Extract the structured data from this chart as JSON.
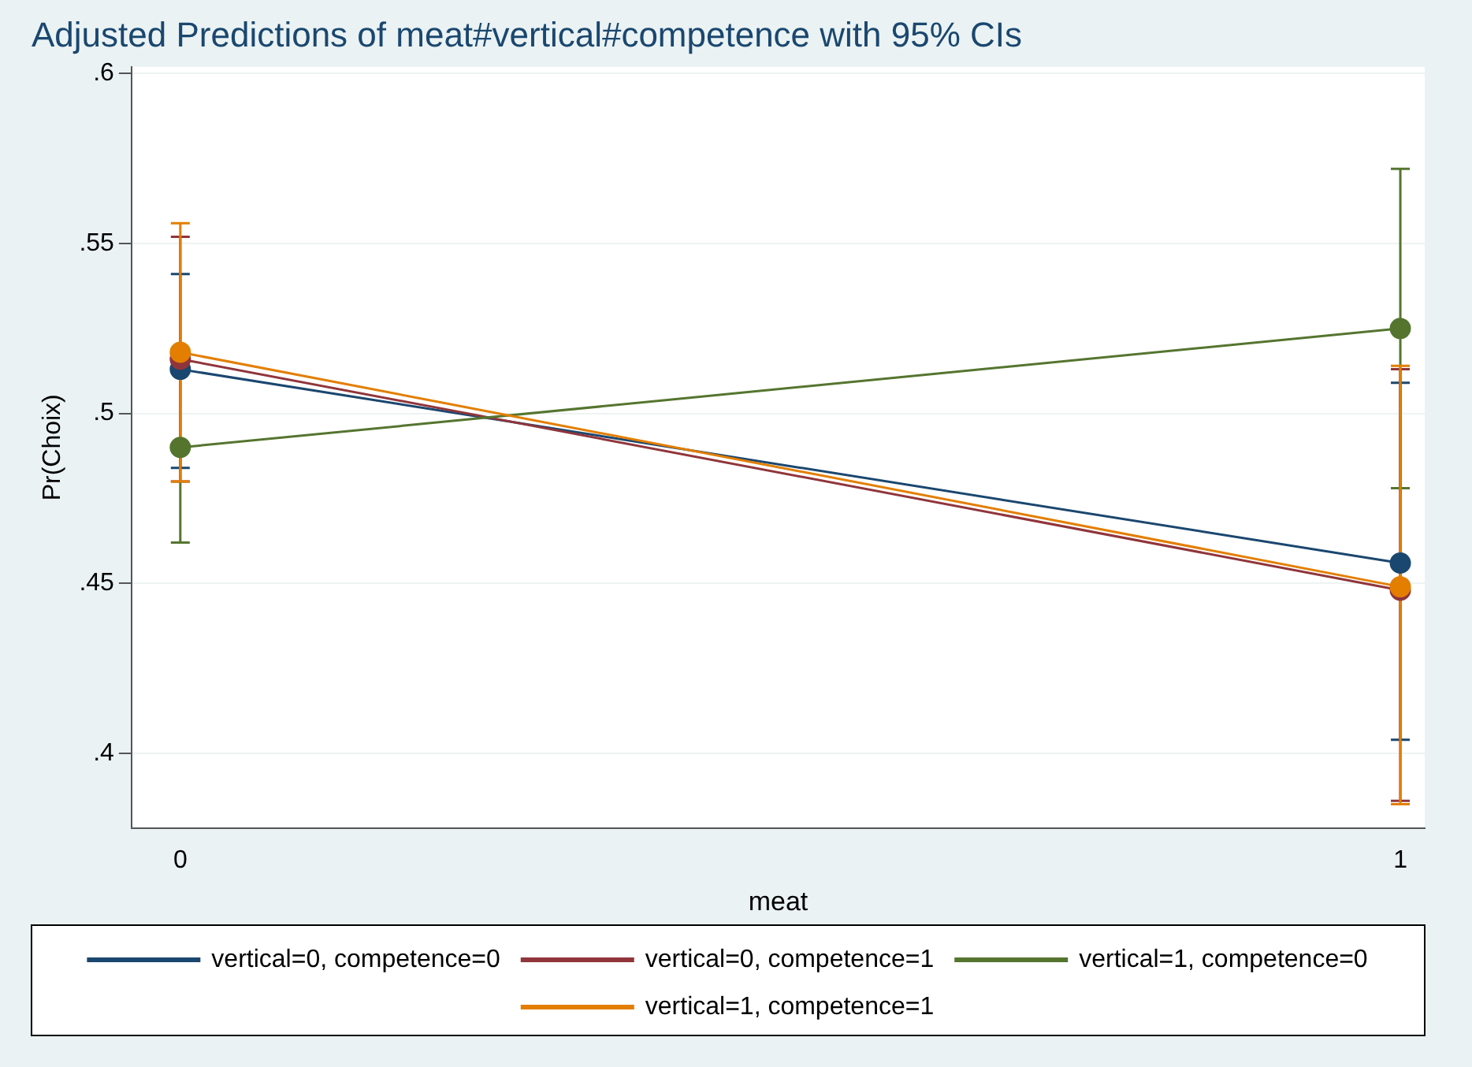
{
  "chart_data": {
    "type": "line",
    "title": "Adjusted Predictions of meat#vertical#competence with 95% CIs",
    "xlabel": "meat",
    "ylabel": "Pr(Choix)",
    "x": [
      0,
      1
    ],
    "xlim": [
      -0.04,
      1.02
    ],
    "xticks": [
      0,
      1
    ],
    "ylim": [
      0.378,
      0.602
    ],
    "yticks": [
      {
        "value": 0.4,
        "label": ".4"
      },
      {
        "value": 0.45,
        "label": ".45"
      },
      {
        "value": 0.5,
        "label": ".5"
      },
      {
        "value": 0.55,
        "label": ".55"
      },
      {
        "value": 0.6,
        "label": ".6"
      }
    ],
    "grid": "y",
    "legend": "bottom",
    "marker": "circle",
    "line_style": "solid",
    "series": [
      {
        "name": "vertical=0, competence=0",
        "color": "#1a476f",
        "values": [
          0.513,
          0.456
        ],
        "errors": [
          [
            0.484,
            0.541
          ],
          [
            0.404,
            0.509
          ]
        ]
      },
      {
        "name": "vertical=0, competence=1",
        "color": "#90353b",
        "values": [
          0.516,
          0.448
        ],
        "errors": [
          [
            0.48,
            0.552
          ],
          [
            0.386,
            0.513
          ]
        ]
      },
      {
        "name": "vertical=1, competence=0",
        "color": "#55752f",
        "values": [
          0.49,
          0.525
        ],
        "errors": [
          [
            0.462,
            0.49
          ],
          [
            0.478,
            0.572
          ]
        ]
      },
      {
        "name": "vertical=1, competence=1",
        "color": "#e37e00",
        "values": [
          0.518,
          0.449
        ],
        "errors": [
          [
            0.48,
            0.556
          ],
          [
            0.385,
            0.514
          ]
        ]
      }
    ]
  }
}
